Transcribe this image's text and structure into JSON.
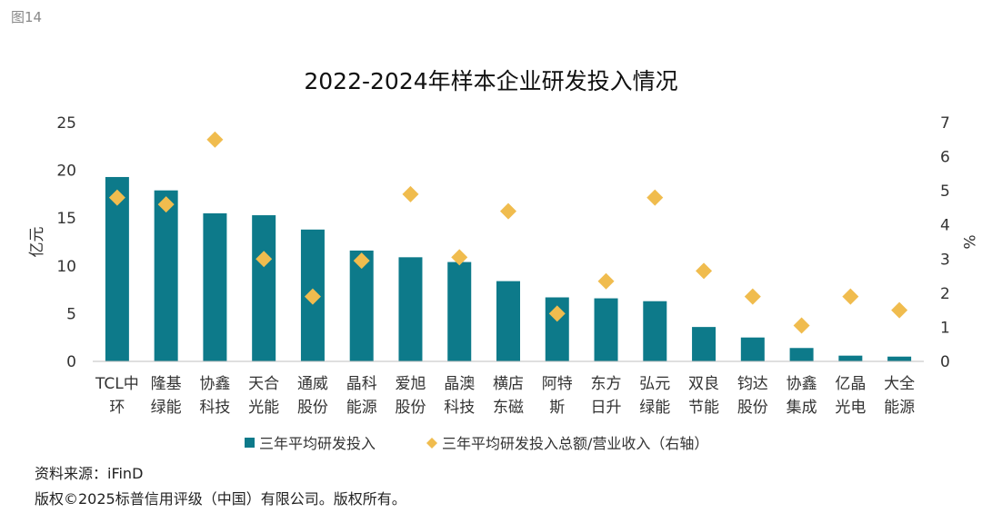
{
  "figure_label": "图14",
  "chart_data": {
    "type": "bar",
    "title": "2022-2024年样本企业研发投入情况",
    "ylabel": "亿元",
    "y2label": "%",
    "ylim": [
      0,
      25
    ],
    "y2lim": [
      0,
      7
    ],
    "yticks": [
      "0",
      "5",
      "10",
      "15",
      "20",
      "25"
    ],
    "y2ticks": [
      "0",
      "1",
      "2",
      "3",
      "4",
      "5",
      "6",
      "7"
    ],
    "categories": [
      [
        "TCL中",
        "环"
      ],
      [
        "隆基",
        "绿能"
      ],
      [
        "协鑫",
        "科技"
      ],
      [
        "天合",
        "光能"
      ],
      [
        "通威",
        "股份"
      ],
      [
        "晶科",
        "能源"
      ],
      [
        "爱旭",
        "股份"
      ],
      [
        "晶澳",
        "科技"
      ],
      [
        "横店",
        "东磁"
      ],
      [
        "阿特",
        "斯"
      ],
      [
        "东方",
        "日升"
      ],
      [
        "弘元",
        "绿能"
      ],
      [
        "双良",
        "节能"
      ],
      [
        "钧达",
        "股份"
      ],
      [
        "协鑫",
        "集成"
      ],
      [
        "亿晶",
        "光电"
      ],
      [
        "大全",
        "能源"
      ]
    ],
    "series": [
      {
        "name": "三年平均研发投入",
        "type": "bar",
        "axis": "left",
        "color": "#0d7a8a",
        "values": [
          19.3,
          17.9,
          15.5,
          15.3,
          13.8,
          11.6,
          10.9,
          10.4,
          8.4,
          6.7,
          6.6,
          6.3,
          3.6,
          2.5,
          1.4,
          0.6,
          0.5
        ]
      },
      {
        "name": "三年平均研发投入总额/营业收入（右轴）",
        "type": "scatter",
        "axis": "right",
        "color": "#f0bc4e",
        "values": [
          4.8,
          4.6,
          6.5,
          3.0,
          1.9,
          2.95,
          4.9,
          3.05,
          4.4,
          1.4,
          2.35,
          4.8,
          2.65,
          1.9,
          1.05,
          1.9,
          1.5
        ]
      }
    ],
    "legend_position": "bottom",
    "grid": false
  },
  "footer": {
    "source": "资料来源：iFinD",
    "copyright": "版权©2025标普信用评级（中国）有限公司。版权所有。"
  }
}
